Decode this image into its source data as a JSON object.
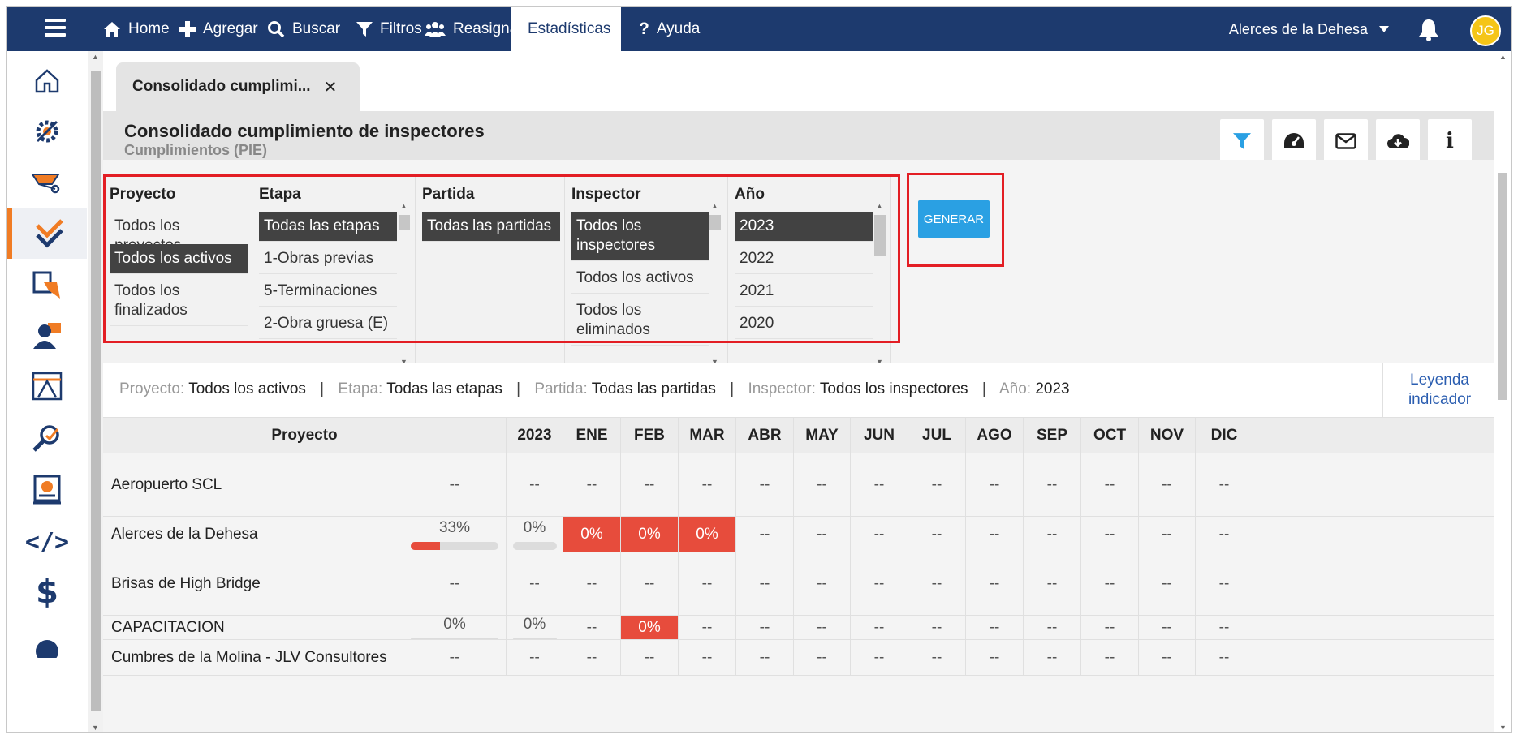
{
  "nav": {
    "items": [
      {
        "label": "Home",
        "icon": "home-icon"
      },
      {
        "label": "Agregar",
        "icon": "plus-icon"
      },
      {
        "label": "Buscar",
        "icon": "search-icon"
      },
      {
        "label": "Filtros",
        "icon": "filter-icon"
      },
      {
        "label": "Reasignar",
        "icon": "users-icon"
      },
      {
        "label": "Estadísticas",
        "icon": "chart-icon"
      },
      {
        "label": "Ayuda",
        "icon": "question-icon"
      }
    ],
    "project": "Alerces de la Dehesa",
    "avatar": "JG"
  },
  "tab": {
    "label": "Consolidado cumplimi..."
  },
  "header": {
    "title": "Consolidado cumplimiento de inspectores",
    "subtitle": "Cumplimientos (PIE)"
  },
  "filters": {
    "proyecto": {
      "label": "Proyecto",
      "options": [
        "Todos los proyectos",
        "Todos los activos",
        "Todos los finalizados"
      ]
    },
    "etapa": {
      "label": "Etapa",
      "options": [
        "Todas las etapas",
        "1-Obras previas",
        "5-Terminaciones",
        "2-Obra gruesa (E)"
      ]
    },
    "partida": {
      "label": "Partida",
      "options": [
        "Todas las partidas"
      ]
    },
    "inspector": {
      "label": "Inspector",
      "options": [
        "Todos los inspectores",
        "Todos los activos",
        "Todos los eliminados"
      ]
    },
    "anio": {
      "label": "Año",
      "options": [
        "2023",
        "2022",
        "2021",
        "2020"
      ]
    },
    "generar": "GENERAR"
  },
  "summary": {
    "proyecto_lbl": "Proyecto:",
    "proyecto_val": "Todos los activos",
    "etapa_lbl": "Etapa:",
    "etapa_val": "Todas las etapas",
    "partida_lbl": "Partida:",
    "partida_val": "Todas las partidas",
    "inspector_lbl": "Inspector:",
    "inspector_val": "Todos los inspectores",
    "anio_lbl": "Año:",
    "anio_val": "2023",
    "sep": "|",
    "legend": "Leyenda indicador"
  },
  "table": {
    "headers": [
      "Proyecto",
      "2023",
      "ENE",
      "FEB",
      "MAR",
      "ABR",
      "MAY",
      "JUN",
      "JUL",
      "AGO",
      "SEP",
      "OCT",
      "NOV",
      "DIC"
    ],
    "rows": [
      {
        "name": "Aeropuerto SCL",
        "total": "--",
        "y2023": "--",
        "months": [
          "--",
          "--",
          "--",
          "--",
          "--",
          "--",
          "--",
          "--",
          "--",
          "--",
          "--",
          "--"
        ]
      },
      {
        "name": "Alerces de la Dehesa",
        "total": "33%",
        "total_fill": 0.33,
        "y2023": "0%",
        "y2023_fill": 0,
        "months": [
          "0%",
          "0%",
          "0%",
          "--",
          "--",
          "--",
          "--",
          "--",
          "--",
          "--",
          "--",
          "--"
        ]
      },
      {
        "name": "Brisas de High Bridge",
        "total": "--",
        "y2023": "--",
        "months": [
          "--",
          "--",
          "--",
          "--",
          "--",
          "--",
          "--",
          "--",
          "--",
          "--",
          "--",
          "--"
        ]
      },
      {
        "name": "CAPACITACION",
        "total": "0%",
        "total_fill": 0,
        "y2023": "0%",
        "y2023_fill": 0,
        "months": [
          "--",
          "0%",
          "--",
          "--",
          "--",
          "--",
          "--",
          "--",
          "--",
          "--",
          "--",
          "--"
        ]
      },
      {
        "name": "Cumbres de la Molina - JLV Consultores",
        "total": "--",
        "y2023": "--",
        "months": [
          "--",
          "--",
          "--",
          "--",
          "--",
          "--",
          "--",
          "--",
          "--",
          "--",
          "--",
          "--"
        ]
      }
    ]
  }
}
